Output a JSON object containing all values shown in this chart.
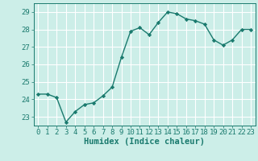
{
  "x": [
    0,
    1,
    2,
    3,
    4,
    5,
    6,
    7,
    8,
    9,
    10,
    11,
    12,
    13,
    14,
    15,
    16,
    17,
    18,
    19,
    20,
    21,
    22,
    23
  ],
  "y": [
    24.3,
    24.3,
    24.1,
    22.7,
    23.3,
    23.7,
    23.8,
    24.2,
    24.7,
    26.4,
    27.9,
    28.1,
    27.7,
    28.4,
    29.0,
    28.9,
    28.6,
    28.5,
    28.3,
    27.4,
    27.1,
    27.4,
    28.0,
    28.0
  ],
  "line_color": "#1a7a6e",
  "marker": "D",
  "marker_size": 2.2,
  "bg_color": "#cceee8",
  "grid_color": "#ffffff",
  "xlabel": "Humidex (Indice chaleur)",
  "xlabel_fontsize": 7.5,
  "tick_color": "#1a7a6e",
  "tick_fontsize": 6.5,
  "ylim": [
    22.5,
    29.5
  ],
  "yticks": [
    23,
    24,
    25,
    26,
    27,
    28,
    29
  ],
  "xticks": [
    0,
    1,
    2,
    3,
    4,
    5,
    6,
    7,
    8,
    9,
    10,
    11,
    12,
    13,
    14,
    15,
    16,
    17,
    18,
    19,
    20,
    21,
    22,
    23
  ],
  "line_width": 1.0
}
